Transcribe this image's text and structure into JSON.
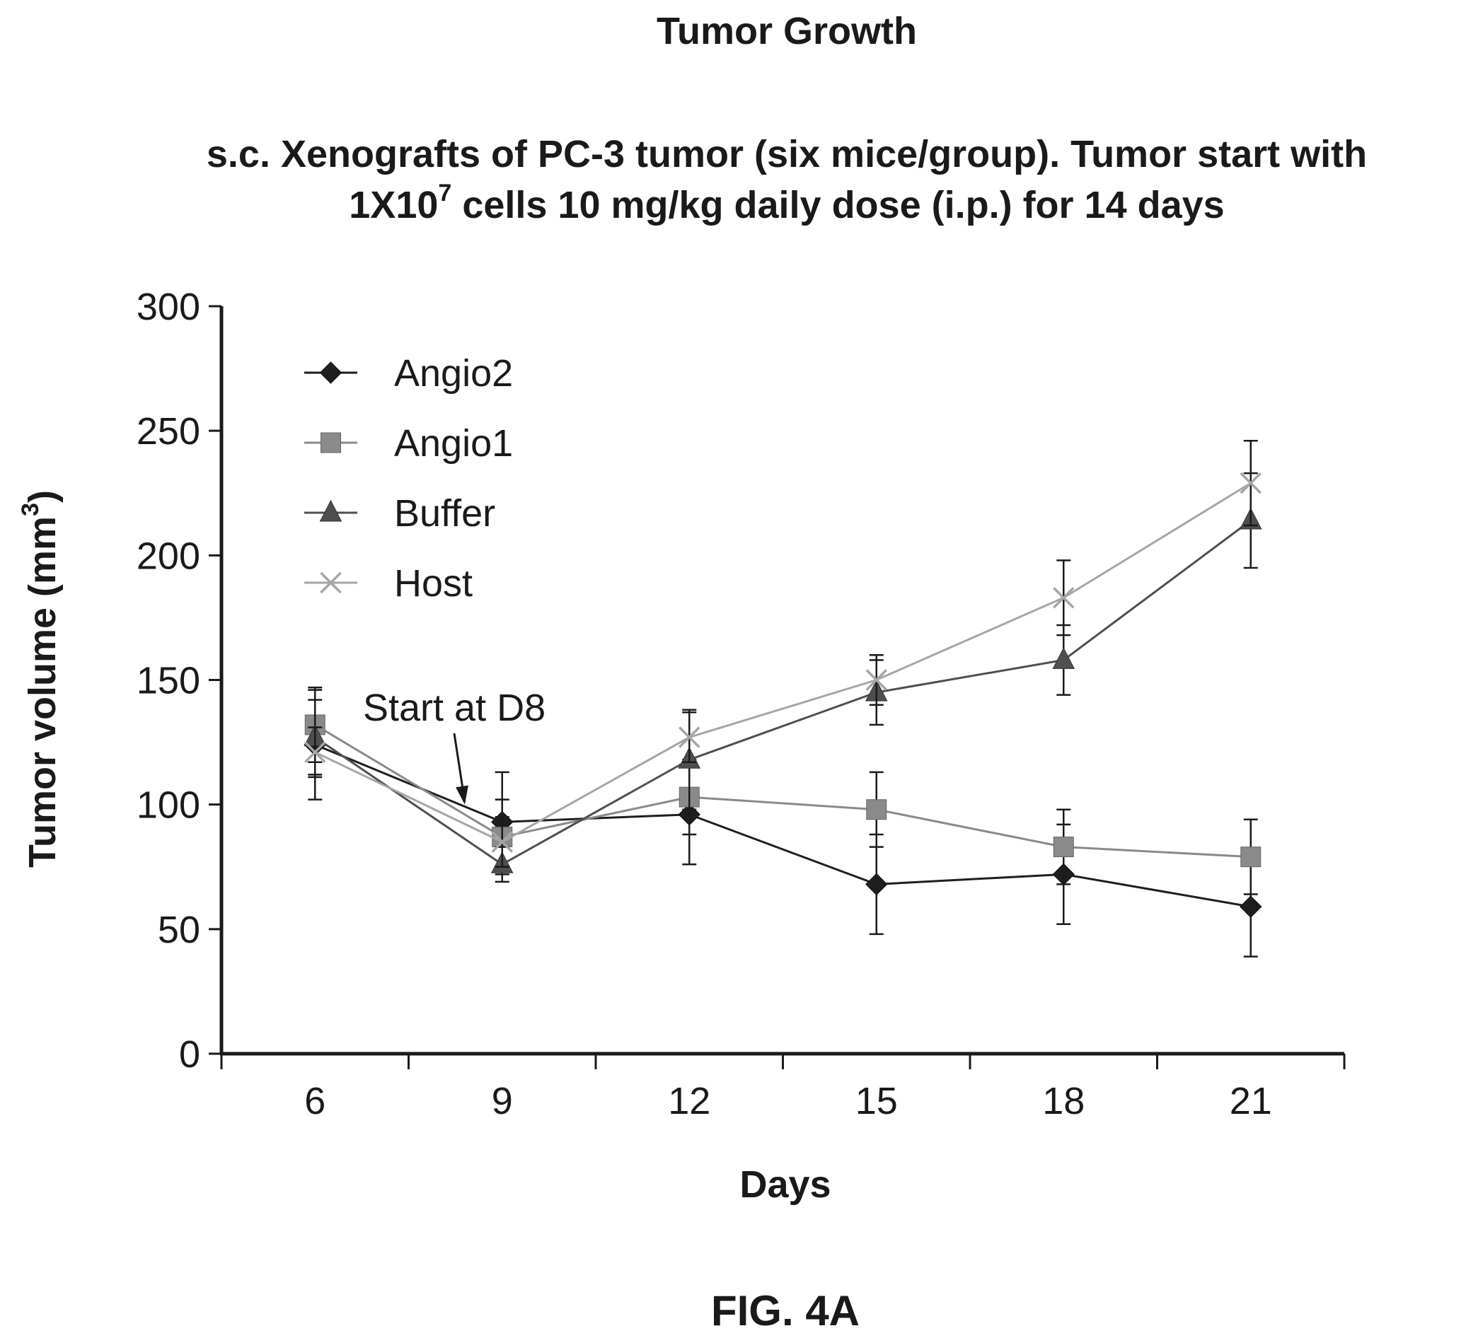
{
  "chart_data": {
    "type": "line",
    "title": "Tumor Growth",
    "subtitle_line1": "s.c. Xenografts of PC-3 tumor (six mice/group). Tumor start with",
    "subtitle_line2_prefix": "1X10",
    "subtitle_line2_sup": "7",
    "subtitle_line2_suffix": " cells 10 mg/kg daily dose (i.p.) for 14 days",
    "xlabel": "Days",
    "ylabel_prefix": "Tumor volume (mm",
    "ylabel_sup": "3",
    "ylabel_suffix": ")",
    "x": [
      6,
      9,
      12,
      15,
      18,
      21
    ],
    "x_tick_labels": [
      "6",
      "9",
      "12",
      "15",
      "18",
      "21"
    ],
    "y_ticks": [
      0,
      50,
      100,
      150,
      200,
      250,
      300
    ],
    "ylim": [
      0,
      300
    ],
    "xlim": [
      4.5,
      22.5
    ],
    "grid": false,
    "legend_position": "top-left",
    "annotation": {
      "text": "Start at D8",
      "x": 8.4,
      "y": 100
    },
    "figure_label": "FIG. 4A",
    "series": [
      {
        "name": "Angio2",
        "marker": "diamond",
        "color": "#1e1e1e",
        "values": [
          124,
          93,
          96,
          68,
          72,
          59
        ],
        "error": [
          22,
          20,
          20,
          20,
          20,
          20
        ]
      },
      {
        "name": "Angio1",
        "marker": "square",
        "color": "#8a8a8a",
        "values": [
          132,
          87,
          103,
          98,
          83,
          79
        ],
        "error": [
          15,
          15,
          15,
          15,
          15,
          15
        ]
      },
      {
        "name": "Buffer",
        "marker": "triangle",
        "color": "#4f4f4f",
        "values": [
          127,
          76,
          118,
          145,
          158,
          214
        ],
        "error": [
          15,
          7,
          20,
          13,
          14,
          19
        ]
      },
      {
        "name": "Host",
        "marker": "x",
        "color": "#a6a6a6",
        "values": [
          121,
          85,
          127,
          150,
          183,
          229
        ],
        "error": [
          10,
          10,
          10,
          10,
          15,
          17
        ]
      }
    ]
  }
}
